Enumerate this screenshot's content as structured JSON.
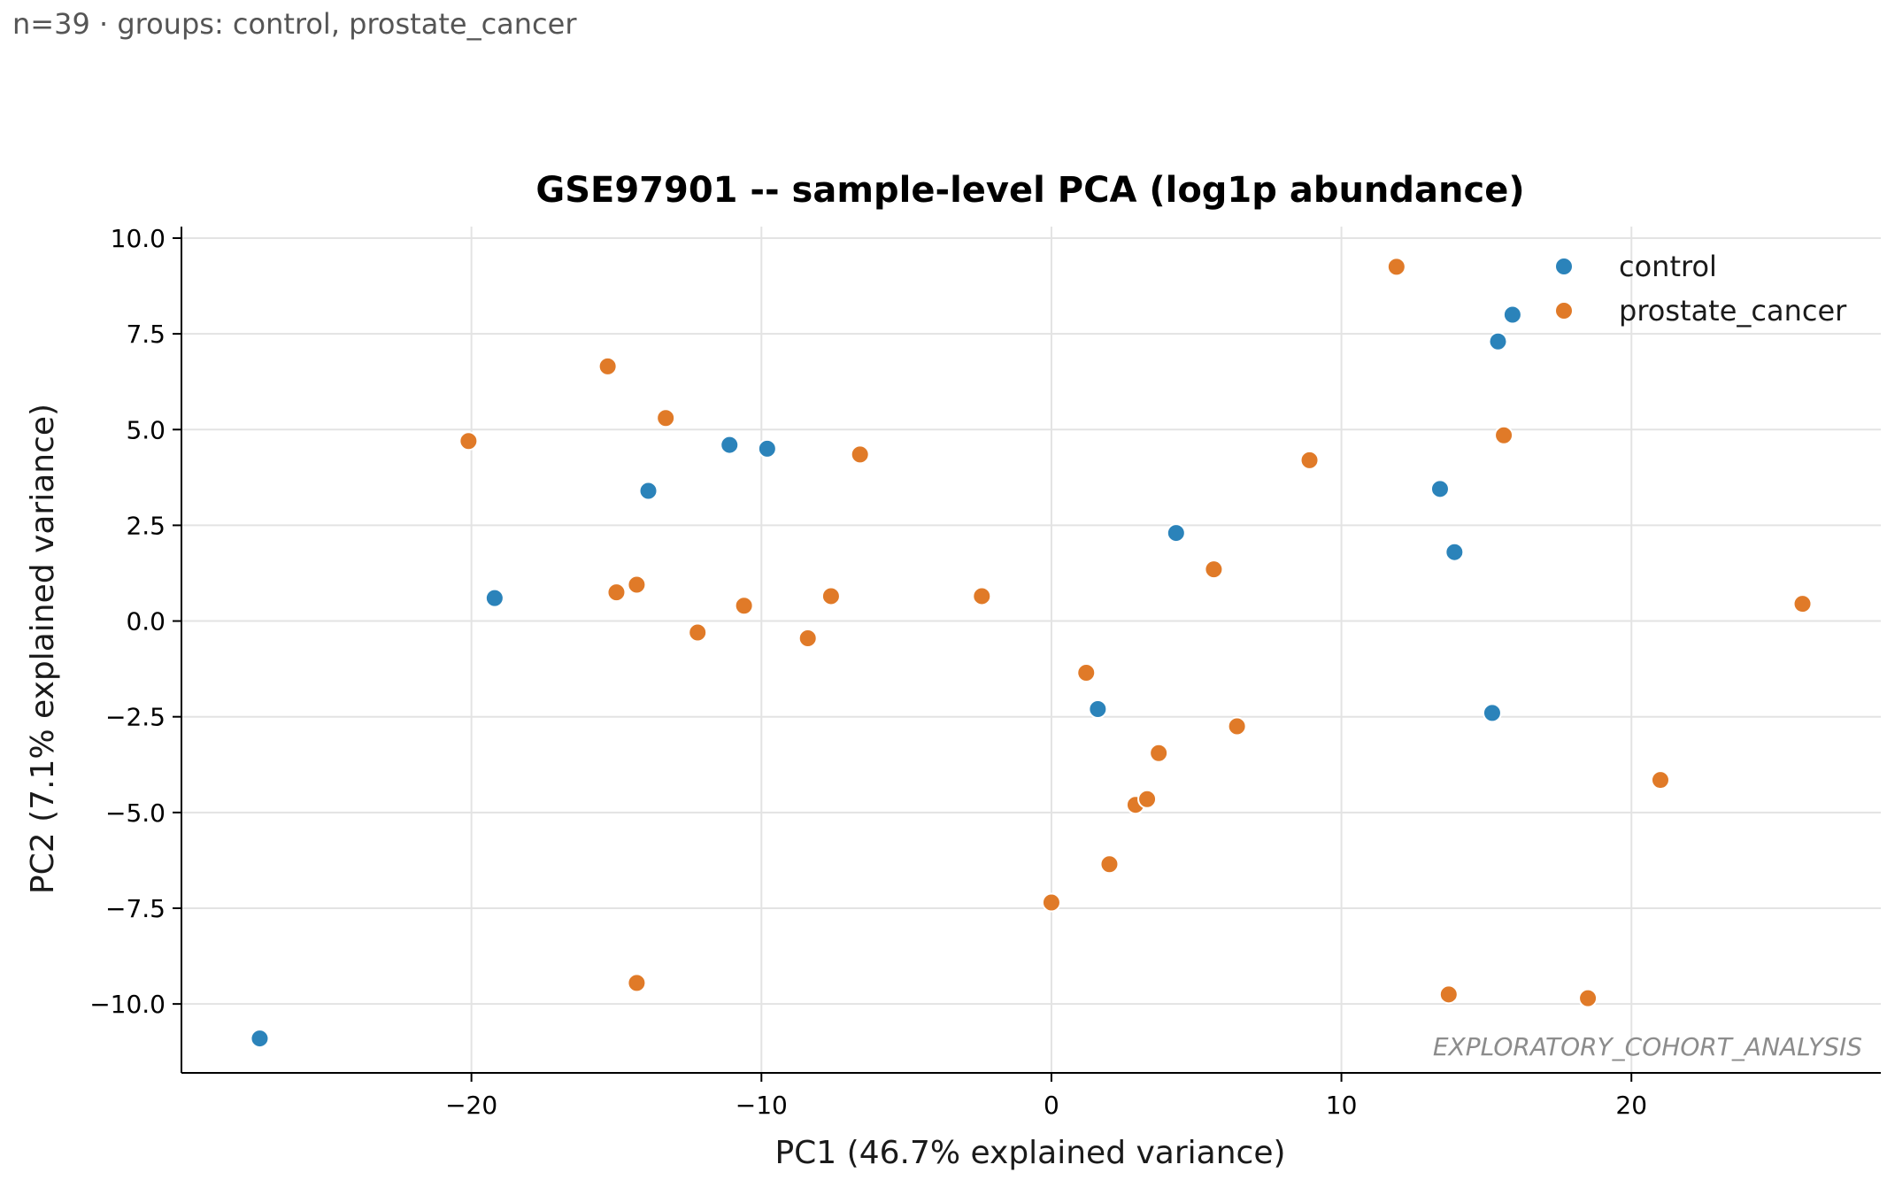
{
  "header": {
    "subtitle": "n=39 · groups: control, prostate_cancer"
  },
  "chart_data": {
    "type": "scatter",
    "title": "GSE97901 -- sample-level PCA (log1p abundance)",
    "xlabel": "PC1 (46.7% explained variance)",
    "ylabel": "PC2 (7.1% explained variance)",
    "xlim": [
      -30,
      28.6
    ],
    "ylim": [
      -11.8,
      10.3
    ],
    "xticks": [
      {
        "value": -20,
        "label": "−20"
      },
      {
        "value": -10,
        "label": "−10"
      },
      {
        "value": 0,
        "label": "0"
      },
      {
        "value": 10,
        "label": "10"
      },
      {
        "value": 20,
        "label": "20"
      }
    ],
    "yticks": [
      {
        "value": 10,
        "label": "10.0"
      },
      {
        "value": 7.5,
        "label": "7.5"
      },
      {
        "value": 5,
        "label": "5.0"
      },
      {
        "value": 2.5,
        "label": "2.5"
      },
      {
        "value": 0,
        "label": "0.0"
      },
      {
        "value": -2.5,
        "label": "−2.5"
      },
      {
        "value": -5,
        "label": "−5.0"
      },
      {
        "value": -7.5,
        "label": "−7.5"
      },
      {
        "value": -10,
        "label": "−10.0"
      }
    ],
    "grid": true,
    "legend_position": "top-right",
    "watermark": "EXPLORATORY_COHORT_ANALYSIS",
    "series": [
      {
        "name": "control",
        "color": "#2b83ba",
        "points": [
          [
            15.9,
            8.0
          ],
          [
            15.4,
            7.3
          ],
          [
            -11.1,
            4.6
          ],
          [
            -9.8,
            4.5
          ],
          [
            -13.9,
            3.4
          ],
          [
            13.4,
            3.45
          ],
          [
            4.3,
            2.3
          ],
          [
            13.9,
            1.8
          ],
          [
            -19.2,
            0.6
          ],
          [
            1.6,
            -2.3
          ],
          [
            15.2,
            -2.4
          ],
          [
            -27.3,
            -10.9
          ]
        ]
      },
      {
        "name": "prostate_cancer",
        "color": "#e07a28",
        "points": [
          [
            11.9,
            9.25
          ],
          [
            -15.3,
            6.65
          ],
          [
            -13.3,
            5.3
          ],
          [
            -20.1,
            4.7
          ],
          [
            -6.6,
            4.35
          ],
          [
            15.6,
            4.85
          ],
          [
            8.9,
            4.2
          ],
          [
            5.6,
            1.35
          ],
          [
            -15.0,
            0.75
          ],
          [
            -14.3,
            0.95
          ],
          [
            -10.6,
            0.4
          ],
          [
            -7.6,
            0.65
          ],
          [
            -2.4,
            0.65
          ],
          [
            -12.2,
            -0.3
          ],
          [
            -8.4,
            -0.45
          ],
          [
            25.9,
            0.45
          ],
          [
            1.2,
            -1.35
          ],
          [
            6.4,
            -2.75
          ],
          [
            3.7,
            -3.45
          ],
          [
            2.9,
            -4.8
          ],
          [
            3.3,
            -4.65
          ],
          [
            21.0,
            -4.15
          ],
          [
            2.0,
            -6.35
          ],
          [
            0.0,
            -7.35
          ],
          [
            -14.3,
            -9.45
          ],
          [
            13.7,
            -9.75
          ],
          [
            18.5,
            -9.85
          ]
        ]
      }
    ]
  }
}
